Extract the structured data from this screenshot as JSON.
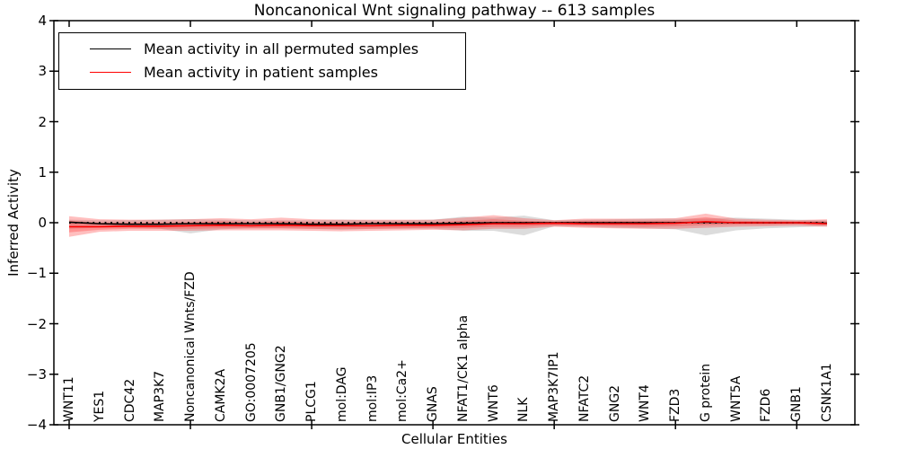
{
  "ui": {
    "title": "Noncanonical Wnt signaling pathway -- 613 samples",
    "xlabel": "Cellular Entities",
    "ylabel": "Inferred Activity",
    "legend": {
      "items": [
        {
          "label": "Mean activity in all permuted samples",
          "color": "#000000"
        },
        {
          "label": "Mean activity in patient samples",
          "color": "#ff0000"
        }
      ]
    },
    "colors": {
      "background": "#ffffff",
      "frame": "#000000",
      "permuted_band": "#808080",
      "patient_band": "#ff2a2a",
      "permuted_line": "#000000",
      "patient_line": "#ff0000"
    }
  },
  "chart_data": {
    "type": "line",
    "title": "Noncanonical Wnt signaling pathway -- 613 samples",
    "xlabel": "Cellular Entities",
    "ylabel": "Inferred Activity",
    "ylim": [
      -4,
      4
    ],
    "yticks": [
      "4",
      "3",
      "2",
      "1",
      "0",
      "−1",
      "−2",
      "−3",
      "−4"
    ],
    "x_tick_mark_interval": 4,
    "grid": false,
    "legend_position": "upper left",
    "categories": [
      "WNT11",
      "YES1",
      "CDC42",
      "MAP3K7",
      "Noncanonical Wnts/FZD",
      "CAMK2A",
      "GO:0007205",
      "GNB1/GNG2",
      "PLCG1",
      "mol:DAG",
      "mol:IP3",
      "mol:Ca2+",
      "GNAS",
      "NFAT1/CK1 alpha",
      "WNT6",
      "NLK",
      "MAP3K7IP1",
      "NFATC2",
      "GNG2",
      "WNT4",
      "FZD3",
      "G protein",
      "WNT5A",
      "FZD6",
      "GNB1",
      "CSNK1A1"
    ],
    "series": [
      {
        "name": "Mean activity in all permuted samples",
        "color": "#000000",
        "values": [
          0.01,
          -0.02,
          -0.03,
          -0.03,
          -0.02,
          -0.02,
          -0.02,
          -0.02,
          -0.03,
          -0.03,
          -0.02,
          -0.02,
          -0.02,
          -0.01,
          0,
          0,
          0,
          0,
          0,
          0,
          0,
          0.01,
          0,
          0,
          0,
          -0.01
        ]
      },
      {
        "name": "Mean activity in patient samples",
        "color": "#ff0000",
        "values": [
          -0.08,
          -0.08,
          -0.07,
          -0.07,
          -0.06,
          -0.05,
          -0.06,
          -0.05,
          -0.06,
          -0.06,
          -0.06,
          -0.05,
          -0.05,
          -0.04,
          -0.02,
          -0.02,
          -0.01,
          -0.02,
          -0.02,
          -0.02,
          -0.01,
          0.02,
          0,
          0,
          0,
          -0.02
        ]
      }
    ],
    "bands": [
      {
        "name": "permuted-range",
        "color": "#808080",
        "opacity": 0.28,
        "upper": [
          0.06,
          0.05,
          0.05,
          0.06,
          0.07,
          0.06,
          0.05,
          0.05,
          0.05,
          0.06,
          0.05,
          0.05,
          0.06,
          0.12,
          0.1,
          0.14,
          0.05,
          0.06,
          0.07,
          0.08,
          0.08,
          0.08,
          0.1,
          0.08,
          0.06,
          0.05
        ],
        "lower": [
          -0.12,
          -0.1,
          -0.1,
          -0.12,
          -0.21,
          -0.13,
          -0.11,
          -0.11,
          -0.12,
          -0.14,
          -0.12,
          -0.12,
          -0.12,
          -0.16,
          -0.16,
          -0.25,
          -0.07,
          -0.08,
          -0.1,
          -0.11,
          -0.13,
          -0.25,
          -0.15,
          -0.11,
          -0.09,
          -0.07
        ]
      },
      {
        "name": "patient-range-outer",
        "color": "#ff2a2a",
        "opacity": 0.3,
        "upper": [
          0.13,
          0.07,
          0.06,
          0.06,
          0.07,
          0.09,
          0.07,
          0.1,
          0.07,
          0.06,
          0.06,
          0.06,
          0.06,
          0.1,
          0.15,
          0.09,
          0.05,
          0.08,
          0.08,
          0.08,
          0.09,
          0.18,
          0.08,
          0.06,
          0.05,
          0.07
        ],
        "lower": [
          -0.28,
          -0.18,
          -0.16,
          -0.16,
          -0.16,
          -0.15,
          -0.15,
          -0.15,
          -0.16,
          -0.17,
          -0.16,
          -0.15,
          -0.14,
          -0.15,
          -0.12,
          -0.12,
          -0.08,
          -0.1,
          -0.11,
          -0.12,
          -0.12,
          -0.1,
          -0.08,
          -0.07,
          -0.06,
          -0.08
        ],
        "note": "full extent of red shading"
      },
      {
        "name": "patient-range-core",
        "color": "#ff2a2a",
        "opacity": 0.3,
        "upper": [
          0.04,
          0.0,
          0.0,
          0.0,
          0.01,
          0.03,
          0.01,
          0.03,
          0.01,
          0.0,
          0.01,
          0.01,
          0.01,
          0.04,
          0.07,
          0.04,
          0.02,
          0.04,
          0.04,
          0.04,
          0.05,
          0.11,
          0.04,
          0.03,
          0.03,
          0.03
        ],
        "lower": [
          -0.19,
          -0.14,
          -0.12,
          -0.12,
          -0.12,
          -0.11,
          -0.11,
          -0.11,
          -0.12,
          -0.12,
          -0.12,
          -0.11,
          -0.1,
          -0.1,
          -0.08,
          -0.08,
          -0.05,
          -0.06,
          -0.07,
          -0.08,
          -0.07,
          -0.05,
          -0.04,
          -0.04,
          -0.03,
          -0.05
        ],
        "note": "darker inner red shading"
      }
    ],
    "zero_line": {
      "y": 0,
      "style": "dotted",
      "color": "#000000"
    }
  }
}
